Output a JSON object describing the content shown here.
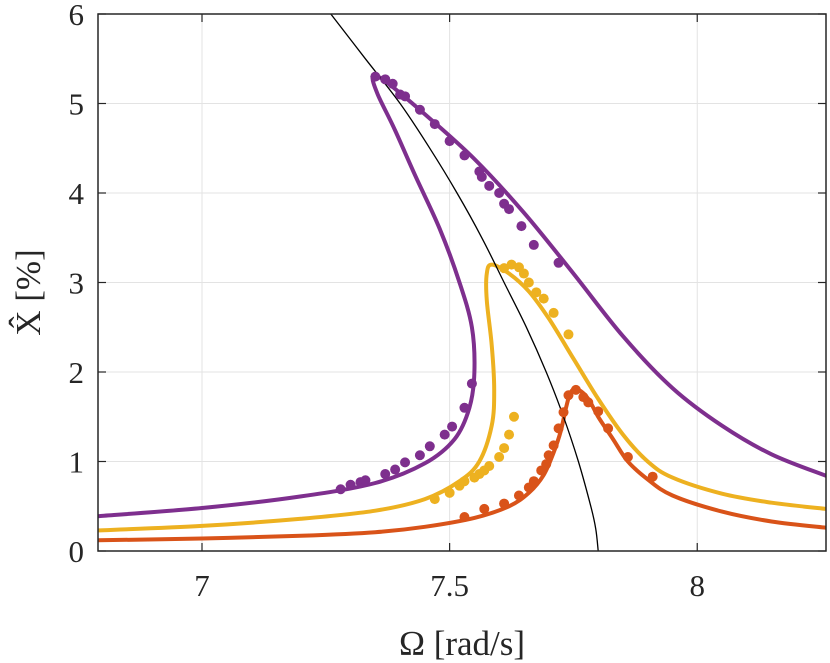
{
  "chart_data": {
    "type": "line",
    "title": "",
    "xlabel": "Ω [rad/s]",
    "ylabel": "X̂ [%]",
    "xlim": [
      6.79,
      8.26
    ],
    "ylim": [
      0,
      6
    ],
    "x_ticks": [
      7,
      7.5,
      8
    ],
    "x_tick_labels": [
      "7",
      "7.5",
      "8"
    ],
    "y_ticks": [
      0,
      1,
      2,
      3,
      4,
      5,
      6
    ],
    "y_tick_labels": [
      "0",
      "1",
      "2",
      "3",
      "4",
      "5",
      "6"
    ],
    "grid": true,
    "legend": "none",
    "backbone": {
      "color": "#000000",
      "points": [
        [
          7.26,
          6.0
        ],
        [
          7.33,
          5.5
        ],
        [
          7.4,
          5.0
        ],
        [
          7.46,
          4.5
        ],
        [
          7.515,
          4.0
        ],
        [
          7.565,
          3.5
        ],
        [
          7.61,
          3.0
        ],
        [
          7.655,
          2.5
        ],
        [
          7.695,
          2.0
        ],
        [
          7.73,
          1.5
        ],
        [
          7.76,
          1.0
        ],
        [
          7.785,
          0.5
        ],
        [
          7.795,
          0.25
        ],
        [
          7.8,
          0.0
        ]
      ]
    },
    "series": [
      {
        "color": "#7E2F8E",
        "curve": [
          [
            6.79,
            0.39
          ],
          [
            7.0,
            0.48
          ],
          [
            7.2,
            0.61
          ],
          [
            7.35,
            0.76
          ],
          [
            7.45,
            0.98
          ],
          [
            7.51,
            1.25
          ],
          [
            7.54,
            1.6
          ],
          [
            7.55,
            2.0
          ],
          [
            7.545,
            2.5
          ],
          [
            7.52,
            3.0
          ],
          [
            7.48,
            3.6
          ],
          [
            7.43,
            4.2
          ],
          [
            7.39,
            4.7
          ],
          [
            7.355,
            5.1
          ],
          [
            7.345,
            5.3
          ],
          [
            7.37,
            5.25
          ],
          [
            7.45,
            4.88
          ],
          [
            7.55,
            4.38
          ],
          [
            7.65,
            3.78
          ],
          [
            7.75,
            3.1
          ],
          [
            7.85,
            2.4
          ],
          [
            7.95,
            1.82
          ],
          [
            8.05,
            1.4
          ],
          [
            8.15,
            1.08
          ],
          [
            8.26,
            0.84
          ]
        ],
        "points": [
          [
            7.28,
            0.69
          ],
          [
            7.3,
            0.74
          ],
          [
            7.32,
            0.77
          ],
          [
            7.33,
            0.79
          ],
          [
            7.37,
            0.86
          ],
          [
            7.39,
            0.91
          ],
          [
            7.41,
            0.99
          ],
          [
            7.44,
            1.07
          ],
          [
            7.46,
            1.17
          ],
          [
            7.49,
            1.3
          ],
          [
            7.505,
            1.39
          ],
          [
            7.53,
            1.6
          ],
          [
            7.545,
            1.87
          ],
          [
            7.35,
            5.3
          ],
          [
            7.37,
            5.27
          ],
          [
            7.385,
            5.22
          ],
          [
            7.4,
            5.1
          ],
          [
            7.41,
            5.08
          ],
          [
            7.44,
            4.93
          ],
          [
            7.47,
            4.77
          ],
          [
            7.5,
            4.58
          ],
          [
            7.53,
            4.42
          ],
          [
            7.56,
            4.24
          ],
          [
            7.565,
            4.18
          ],
          [
            7.58,
            4.08
          ],
          [
            7.6,
            4.0
          ],
          [
            7.61,
            3.88
          ],
          [
            7.62,
            3.82
          ],
          [
            7.645,
            3.63
          ],
          [
            7.67,
            3.42
          ],
          [
            7.72,
            3.22
          ]
        ]
      },
      {
        "color": "#EDB120",
        "curve": [
          [
            6.79,
            0.23
          ],
          [
            7.0,
            0.28
          ],
          [
            7.2,
            0.36
          ],
          [
            7.35,
            0.45
          ],
          [
            7.45,
            0.58
          ],
          [
            7.52,
            0.78
          ],
          [
            7.56,
            1.0
          ],
          [
            7.585,
            1.4
          ],
          [
            7.59,
            1.8
          ],
          [
            7.585,
            2.3
          ],
          [
            7.575,
            2.8
          ],
          [
            7.575,
            3.1
          ],
          [
            7.585,
            3.2
          ],
          [
            7.62,
            3.1
          ],
          [
            7.66,
            2.9
          ],
          [
            7.7,
            2.6
          ],
          [
            7.75,
            2.15
          ],
          [
            7.8,
            1.7
          ],
          [
            7.85,
            1.3
          ],
          [
            7.9,
            1.0
          ],
          [
            7.95,
            0.82
          ],
          [
            8.05,
            0.64
          ],
          [
            8.15,
            0.54
          ],
          [
            8.26,
            0.47
          ]
        ],
        "points": [
          [
            7.47,
            0.58
          ],
          [
            7.5,
            0.65
          ],
          [
            7.52,
            0.73
          ],
          [
            7.53,
            0.78
          ],
          [
            7.55,
            0.82
          ],
          [
            7.56,
            0.86
          ],
          [
            7.57,
            0.9
          ],
          [
            7.58,
            0.95
          ],
          [
            7.6,
            1.05
          ],
          [
            7.61,
            1.15
          ],
          [
            7.62,
            1.3
          ],
          [
            7.63,
            1.5
          ],
          [
            7.61,
            3.16
          ],
          [
            7.625,
            3.2
          ],
          [
            7.64,
            3.17
          ],
          [
            7.65,
            3.1
          ],
          [
            7.66,
            3.0
          ],
          [
            7.675,
            2.89
          ],
          [
            7.69,
            2.82
          ],
          [
            7.71,
            2.66
          ],
          [
            7.74,
            2.42
          ]
        ]
      },
      {
        "color": "#D95319",
        "curve": [
          [
            6.79,
            0.12
          ],
          [
            7.0,
            0.14
          ],
          [
            7.2,
            0.17
          ],
          [
            7.35,
            0.21
          ],
          [
            7.45,
            0.27
          ],
          [
            7.55,
            0.37
          ],
          [
            7.62,
            0.5
          ],
          [
            7.66,
            0.65
          ],
          [
            7.69,
            0.85
          ],
          [
            7.71,
            1.1
          ],
          [
            7.725,
            1.35
          ],
          [
            7.735,
            1.6
          ],
          [
            7.745,
            1.78
          ],
          [
            7.76,
            1.8
          ],
          [
            7.78,
            1.7
          ],
          [
            7.8,
            1.5
          ],
          [
            7.83,
            1.25
          ],
          [
            7.86,
            1.0
          ],
          [
            7.9,
            0.8
          ],
          [
            7.95,
            0.62
          ],
          [
            8.05,
            0.44
          ],
          [
            8.15,
            0.33
          ],
          [
            8.26,
            0.26
          ]
        ],
        "points": [
          [
            7.53,
            0.38
          ],
          [
            7.57,
            0.47
          ],
          [
            7.61,
            0.53
          ],
          [
            7.64,
            0.62
          ],
          [
            7.66,
            0.71
          ],
          [
            7.67,
            0.78
          ],
          [
            7.685,
            0.9
          ],
          [
            7.695,
            0.97
          ],
          [
            7.7,
            1.07
          ],
          [
            7.71,
            1.18
          ],
          [
            7.72,
            1.37
          ],
          [
            7.73,
            1.55
          ],
          [
            7.74,
            1.74
          ],
          [
            7.755,
            1.8
          ],
          [
            7.77,
            1.72
          ],
          [
            7.78,
            1.66
          ],
          [
            7.8,
            1.56
          ],
          [
            7.82,
            1.37
          ],
          [
            7.86,
            1.05
          ],
          [
            7.91,
            0.83
          ]
        ]
      }
    ]
  }
}
